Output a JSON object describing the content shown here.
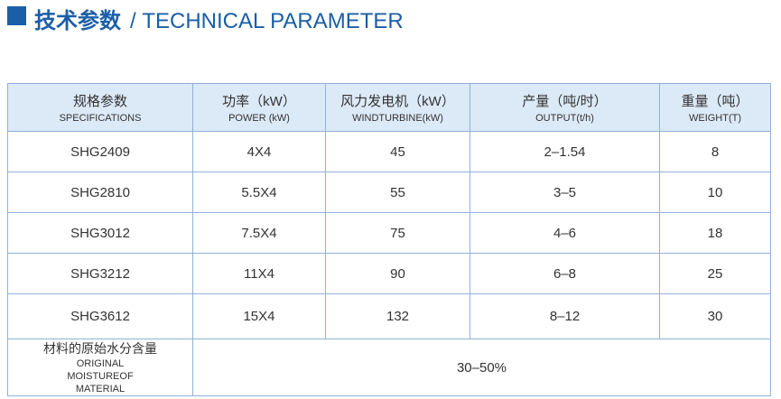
{
  "header": {
    "title_cn": "技术参数",
    "title_en": "/ TECHNICAL PARAMETER"
  },
  "table": {
    "columns": [
      {
        "cn": "规格参数",
        "en": "SPECIFICATIONS"
      },
      {
        "cn": "功率（kW）",
        "en": "POWER (kW)"
      },
      {
        "cn": "风力发电机（kW）",
        "en": "WINDTURBINE(kW)"
      },
      {
        "cn": "产量（吨/时）",
        "en": "OUTPUT(t/h)"
      },
      {
        "cn": "重量（吨）",
        "en": "WEIGHT(T)"
      }
    ],
    "rows": [
      [
        "SHG2409",
        "4X4",
        "45",
        "2–1.54",
        "8"
      ],
      [
        "SHG2810",
        "5.5X4",
        "55",
        "3–5",
        "10"
      ],
      [
        "SHG3012",
        "7.5X4",
        "75",
        "4–6",
        "18"
      ],
      [
        "SHG3212",
        "11X4",
        "90",
        "6–8",
        "25"
      ],
      [
        "SHG3612",
        "15X4",
        "132",
        "8–12",
        "30"
      ]
    ],
    "footer": {
      "label_cn": "材料的原始水分含量",
      "label_en": "ORIGINAL MOISTUREOF MATERIAL",
      "value": "30–50%"
    }
  }
}
